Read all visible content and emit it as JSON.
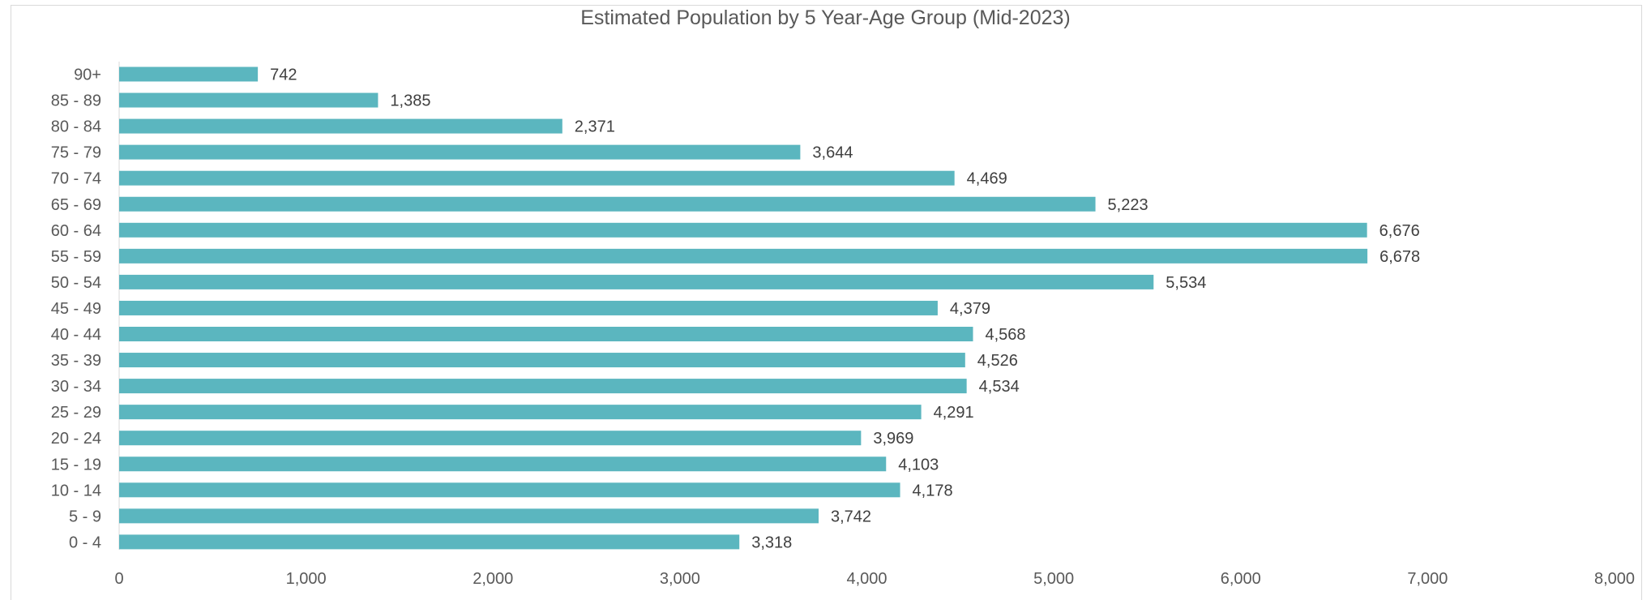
{
  "chart_data": {
    "type": "bar",
    "orientation": "horizontal",
    "title": "Estimated Population by 5 Year-Age Group (Mid-2023)",
    "xlabel": "",
    "ylabel": "",
    "xlim": [
      0,
      8000
    ],
    "x_ticks": [
      "0",
      "1,000",
      "2,000",
      "3,000",
      "4,000",
      "5,000",
      "6,000",
      "7,000",
      "8,000"
    ],
    "x_tick_values": [
      0,
      1000,
      2000,
      3000,
      4000,
      5000,
      6000,
      7000,
      8000
    ],
    "grid": false,
    "legend": "none",
    "bar_color": "#5bb6bf",
    "categories": [
      "90+",
      "85 - 89",
      "80 - 84",
      "75 - 79",
      "70 - 74",
      "65 - 69",
      "60 - 64",
      "55 - 59",
      "50 - 54",
      "45 - 49",
      "40 - 44",
      "35 - 39",
      "30 - 34",
      "25 - 29",
      "20 - 24",
      "15 - 19",
      "10 - 14",
      "5 - 9",
      "0 - 4"
    ],
    "values": [
      742,
      1385,
      2371,
      3644,
      4469,
      5223,
      6676,
      6678,
      5534,
      4379,
      4568,
      4526,
      4534,
      4291,
      3969,
      4103,
      4178,
      3742,
      3318
    ],
    "value_labels": [
      "742",
      "1,385",
      "2,371",
      "3,644",
      "4,469",
      "5,223",
      "6,676",
      "6,678",
      "5,534",
      "4,379",
      "4,568",
      "4,526",
      "4,534",
      "4,291",
      "3,969",
      "4,103",
      "4,178",
      "3,742",
      "3,318"
    ]
  }
}
